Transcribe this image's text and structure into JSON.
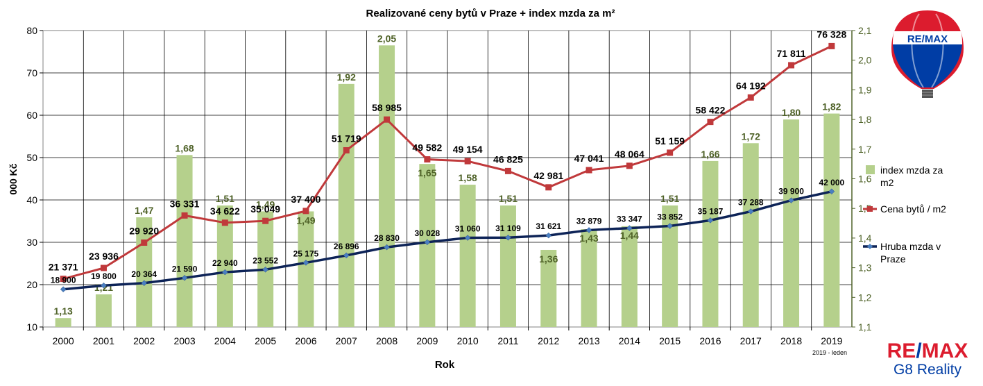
{
  "chart_data": {
    "type": "bar+line",
    "title": "Realizované ceny bytů v Praze + index mzda za m²",
    "xlabel": "Rok",
    "ylabel": "000 Kč",
    "categories": [
      "2000",
      "2001",
      "2002",
      "2003",
      "2004",
      "2005",
      "2006",
      "2007",
      "2008",
      "2009",
      "2010",
      "2011",
      "2012",
      "2013",
      "2014",
      "2015",
      "2016",
      "2017",
      "2018",
      "2019"
    ],
    "ylim": [
      10,
      80
    ],
    "y_ticks": [
      "10",
      "20",
      "30",
      "40",
      "50",
      "60",
      "70",
      "80"
    ],
    "y2lim": [
      1.1,
      2.1
    ],
    "y2_ticks": [
      "1,1",
      "1,2",
      "1,3",
      "1,4",
      "1,5",
      "1,6",
      "1,7",
      "1,8",
      "1,9",
      "2,0",
      "2,1"
    ],
    "grid": true,
    "legend_position": "right",
    "x_note": "2019 - leden",
    "series": [
      {
        "name": "index mzda za m2",
        "type": "bar",
        "axis": "right",
        "color": "#b5d08c",
        "label_color": "#4f6228",
        "values": [
          1.13,
          1.21,
          1.47,
          1.68,
          1.51,
          1.49,
          1.49,
          1.92,
          2.05,
          1.65,
          1.58,
          1.51,
          1.36,
          1.43,
          1.44,
          1.51,
          1.66,
          1.72,
          1.8,
          1.82
        ],
        "labels": [
          "1,13",
          "1,21",
          "1,47",
          "1,68",
          "1,51",
          "1,49",
          "1,49",
          "1,92",
          "2,05",
          "1,65",
          "1,58",
          "1,51",
          "1,36",
          "1,43",
          "1,44",
          "1,51",
          "1,66",
          "1,72",
          "1,80",
          "1,82"
        ]
      },
      {
        "name": "Cena bytů / m2",
        "type": "line",
        "axis": "left",
        "color": "#c0393b",
        "values": [
          21.371,
          23.936,
          29.92,
          36.331,
          34.622,
          35.049,
          37.4,
          51.719,
          58.985,
          49.582,
          49.154,
          46.825,
          42.981,
          47.041,
          48.064,
          51.159,
          58.422,
          64.192,
          71.811,
          76.328
        ],
        "labels": [
          "21 371",
          "23 936",
          "29 920",
          "36 331",
          "34 622",
          "35 049",
          "37 400",
          "51 719",
          "58 985",
          "49 582",
          "49 154",
          "46 825",
          "42 981",
          "47 041",
          "48 064",
          "51 159",
          "58 422",
          "64 192",
          "71 811",
          "76 328"
        ]
      },
      {
        "name": "Hruba mzda v Praze",
        "type": "line",
        "axis": "left",
        "color": "#0d2357",
        "values": [
          18.9,
          19.8,
          20.364,
          21.59,
          22.94,
          23.552,
          25.175,
          26.896,
          28.83,
          30.028,
          31.06,
          31.109,
          31.621,
          32.879,
          33.347,
          33.852,
          35.187,
          37.288,
          39.9,
          42.0
        ],
        "labels": [
          "18 900",
          "19 800",
          "20 364",
          "21 590",
          "22 940",
          "23 552",
          "25 175",
          "26 896",
          "28 830",
          "30 028",
          "31 060",
          "31 109",
          "31 621",
          "32 879",
          "33 347",
          "33 852",
          "35 187",
          "37 288",
          "39 900",
          "42 000"
        ]
      }
    ],
    "legend": {
      "index": [
        "index mzda za",
        "m2"
      ],
      "cena": [
        "Cena bytů / m2"
      ],
      "mzda": [
        "Hruba mzda v",
        "Praze"
      ]
    }
  },
  "brand": {
    "balloon_text": "RE/MAX",
    "name_part1": "RE",
    "name_slash": "/",
    "name_part2": "MAX",
    "subtitle": "G8 Reality",
    "colors": {
      "red": "#dc1c2e",
      "blue": "#003da5",
      "white": "#ffffff"
    }
  }
}
